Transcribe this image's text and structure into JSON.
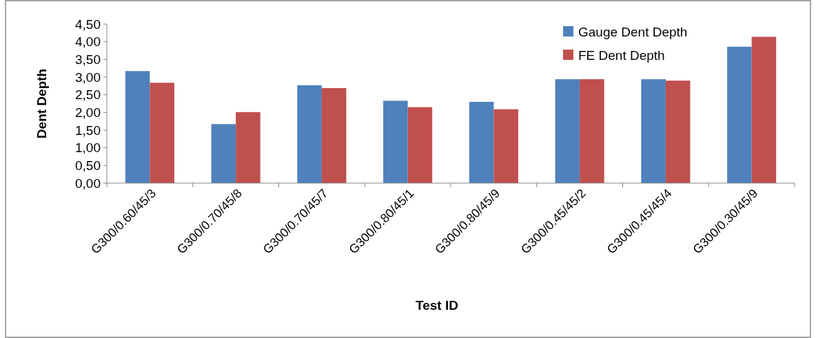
{
  "chart_data": {
    "type": "bar",
    "xlabel": "Test ID",
    "ylabel": "Dent Depth",
    "categories": [
      "G300/0.60/45/3",
      "G300/0.70/45/8",
      "G300/0.70/45/7",
      "G300/0.80/45/1",
      "G300/0.80/45/9",
      "G300/0.45/45/2",
      "G300/0.45/45/4",
      "G300/0.30/45/9"
    ],
    "series": [
      {
        "name": "Gauge Dent Depth",
        "color": "#4f81bd",
        "values": [
          3.17,
          1.67,
          2.77,
          2.33,
          2.3,
          2.94,
          2.94,
          3.86
        ]
      },
      {
        "name": "FE Dent Depth",
        "color": "#c0504d",
        "values": [
          2.84,
          2.01,
          2.69,
          2.15,
          2.09,
          2.94,
          2.9,
          4.14
        ]
      }
    ],
    "ylim": [
      0,
      4.5
    ],
    "yticks": [
      {
        "value": 0,
        "label": "0,00"
      },
      {
        "value": 0.5,
        "label": "0,50"
      },
      {
        "value": 1,
        "label": "1,00"
      },
      {
        "value": 1.5,
        "label": "1,50"
      },
      {
        "value": 2,
        "label": "2,00"
      },
      {
        "value": 2.5,
        "label": "2,50"
      },
      {
        "value": 3,
        "label": "3,00"
      },
      {
        "value": 3.5,
        "label": "3,50"
      },
      {
        "value": 4,
        "label": "4,00"
      },
      {
        "value": 4.5,
        "label": "4,50"
      }
    ],
    "legend": "top right"
  }
}
